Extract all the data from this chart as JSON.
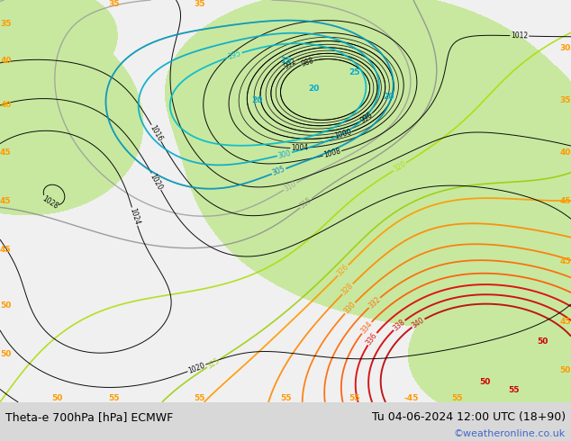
{
  "title_left": "Theta-e 700hPa [hPa] ECMWF",
  "title_right": "Tu 04-06-2024 12:00 UTC (18+90)",
  "credit": "©weatheronline.co.uk",
  "fig_width": 6.34,
  "fig_height": 4.9,
  "dpi": 100,
  "map_bg": "#f0f0f0",
  "land_green": "#c8e8a0",
  "land_green2": "#d8f0b0",
  "credit_color": "#4466cc",
  "bar_color": "#d8d8d8"
}
